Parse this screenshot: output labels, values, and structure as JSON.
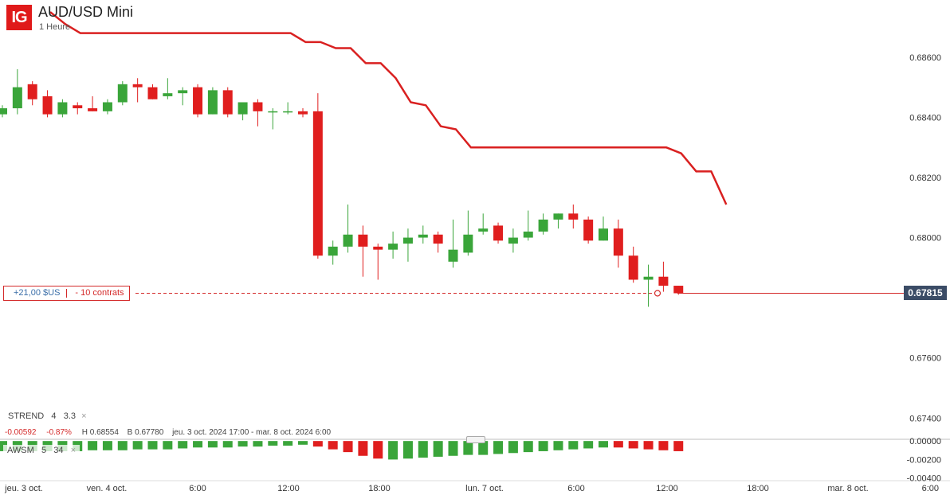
{
  "header": {
    "logo": "IG",
    "title": "AUD/USD Mini",
    "interval": "1 Heure"
  },
  "position": {
    "pl": "+21,00 $US",
    "size": "- 10 contrats",
    "level": 0.67815
  },
  "current_price": {
    "label": "0.67815",
    "value": 0.67815
  },
  "indicators": {
    "strend": {
      "name": "STREND",
      "p1": "4",
      "p2": "3.3",
      "close": "×"
    },
    "awsm": {
      "name": "AWSM",
      "p1": "5",
      "p2": "34",
      "close": "×"
    }
  },
  "stats": {
    "change": "-0.00592",
    "change_pct": "-0.87%",
    "high": "H 0.68554",
    "low": "B 0.67780",
    "range": "jeu. 3 oct. 2024 17:00 - mar. 8 oct. 2024 6:00"
  },
  "colors": {
    "up": "#3aa53a",
    "down": "#e01e1e",
    "supertrend": "#d92020",
    "price_tag_bg": "#3b4c66"
  },
  "chart_data": [
    {
      "type": "candlestick",
      "title": "AUD/USD Mini",
      "ylim": [
        0.6734,
        0.6879
      ],
      "y_ticks": [
        "0.68600",
        "0.68400",
        "0.68200",
        "0.68000",
        "0.67600",
        "0.67400"
      ],
      "x_labels": [
        "jeu. 3 oct.",
        "ven. 4 oct.",
        "6:00",
        "12:00",
        "18:00",
        "lun. 7 oct.",
        "6:00",
        "12:00",
        "18:00",
        "mar. 8 oct.",
        "6:00"
      ],
      "candles": [
        [
          0.6841,
          0.6844,
          0.684,
          0.6843
        ],
        [
          0.6843,
          0.6856,
          0.6841,
          0.685
        ],
        [
          0.6851,
          0.6852,
          0.6844,
          0.6846
        ],
        [
          0.6847,
          0.6849,
          0.684,
          0.6841
        ],
        [
          0.6841,
          0.6846,
          0.684,
          0.6845
        ],
        [
          0.6844,
          0.6845,
          0.6841,
          0.6843
        ],
        [
          0.6843,
          0.6847,
          0.6842,
          0.6842
        ],
        [
          0.6842,
          0.6846,
          0.6841,
          0.6845
        ],
        [
          0.6845,
          0.6852,
          0.6844,
          0.6851
        ],
        [
          0.6851,
          0.6853,
          0.6845,
          0.685
        ],
        [
          0.685,
          0.6851,
          0.6846,
          0.6846
        ],
        [
          0.6847,
          0.6853,
          0.6846,
          0.6848
        ],
        [
          0.6848,
          0.685,
          0.6844,
          0.6849
        ],
        [
          0.685,
          0.6851,
          0.684,
          0.6841
        ],
        [
          0.6841,
          0.685,
          0.6841,
          0.6849
        ],
        [
          0.6849,
          0.685,
          0.684,
          0.6841
        ],
        [
          0.6841,
          0.6845,
          0.6839,
          0.6845
        ],
        [
          0.6845,
          0.6846,
          0.6837,
          0.6842
        ],
        [
          0.6842,
          0.6843,
          0.6836,
          0.6842
        ],
        [
          0.6842,
          0.6845,
          0.6841,
          0.6842
        ],
        [
          0.6842,
          0.6843,
          0.684,
          0.6841
        ],
        [
          0.6842,
          0.6848,
          0.6793,
          0.6794
        ],
        [
          0.6794,
          0.6799,
          0.6791,
          0.6797
        ],
        [
          0.6797,
          0.6811,
          0.6795,
          0.6801
        ],
        [
          0.6801,
          0.6804,
          0.6787,
          0.6797
        ],
        [
          0.6797,
          0.6798,
          0.6786,
          0.6796
        ],
        [
          0.6796,
          0.6802,
          0.6793,
          0.6798
        ],
        [
          0.6798,
          0.6803,
          0.6792,
          0.68
        ],
        [
          0.68,
          0.6804,
          0.6798,
          0.6801
        ],
        [
          0.6801,
          0.6802,
          0.6795,
          0.6798
        ],
        [
          0.6792,
          0.6806,
          0.679,
          0.6796
        ],
        [
          0.6795,
          0.6809,
          0.6794,
          0.6801
        ],
        [
          0.6802,
          0.6808,
          0.6801,
          0.6803
        ],
        [
          0.6804,
          0.6805,
          0.6798,
          0.6799
        ],
        [
          0.6798,
          0.6803,
          0.6795,
          0.68
        ],
        [
          0.68,
          0.6809,
          0.6799,
          0.6802
        ],
        [
          0.6802,
          0.6808,
          0.6801,
          0.6806
        ],
        [
          0.6806,
          0.6808,
          0.6803,
          0.6808
        ],
        [
          0.6808,
          0.6811,
          0.6803,
          0.6806
        ],
        [
          0.6806,
          0.6807,
          0.6798,
          0.6799
        ],
        [
          0.6799,
          0.6807,
          0.6799,
          0.6803
        ],
        [
          0.6803,
          0.6806,
          0.679,
          0.6794
        ],
        [
          0.6794,
          0.6797,
          0.6785,
          0.6786
        ],
        [
          0.6786,
          0.6791,
          0.6777,
          0.6787
        ],
        [
          0.6787,
          0.6792,
          0.6782,
          0.6784
        ],
        [
          0.6784,
          0.6784,
          0.6781,
          0.67815
        ]
      ],
      "supertrend": [
        0.6875,
        0.6871,
        0.6868,
        0.6868,
        0.6868,
        0.6868,
        0.6868,
        0.6868,
        0.6868,
        0.6868,
        0.6868,
        0.6868,
        0.6868,
        0.6868,
        0.6868,
        0.6868,
        0.6868,
        0.6865,
        0.6865,
        0.6863,
        0.6863,
        0.6858,
        0.6858,
        0.6853,
        0.6845,
        0.6844,
        0.6837,
        0.6836,
        0.683,
        0.683,
        0.683,
        0.683,
        0.683,
        0.683,
        0.683,
        0.683,
        0.683,
        0.683,
        0.683,
        0.683,
        0.683,
        0.683,
        0.6828,
        0.6822,
        0.6822,
        0.6811
      ]
    },
    {
      "type": "bar",
      "name": "AWSM",
      "ylim": [
        -0.0042,
        0.0001
      ],
      "y_ticks": [
        "0.00000",
        "-0.00200",
        "-0.00400"
      ],
      "values": [
        -0.0011,
        -0.0011,
        -0.0011,
        -0.0011,
        -0.0011,
        -0.0011,
        -0.001,
        -0.001,
        -0.001,
        -0.0009,
        -0.0009,
        -0.0009,
        -0.0008,
        -0.0007,
        -0.0007,
        -0.0007,
        -0.0006,
        -0.0006,
        -0.0005,
        -0.0005,
        -0.0004,
        -0.0006,
        -0.0009,
        -0.0012,
        -0.0016,
        -0.0019,
        -0.002,
        -0.0019,
        -0.0018,
        -0.0017,
        -0.0016,
        -0.0015,
        -0.0015,
        -0.0014,
        -0.0013,
        -0.0012,
        -0.0011,
        -0.001,
        -0.0009,
        -0.0008,
        -0.0007,
        -0.0007,
        -0.0008,
        -0.0009,
        -0.001,
        -0.0011
      ],
      "colors": [
        "up",
        "up",
        "up",
        "up",
        "up",
        "up",
        "up",
        "up",
        "up",
        "up",
        "up",
        "up",
        "up",
        "up",
        "up",
        "up",
        "up",
        "up",
        "up",
        "up",
        "up",
        "down",
        "down",
        "down",
        "down",
        "down",
        "up",
        "up",
        "up",
        "up",
        "up",
        "up",
        "up",
        "up",
        "up",
        "up",
        "up",
        "up",
        "up",
        "up",
        "up",
        "down",
        "down",
        "down",
        "down",
        "down"
      ]
    }
  ]
}
